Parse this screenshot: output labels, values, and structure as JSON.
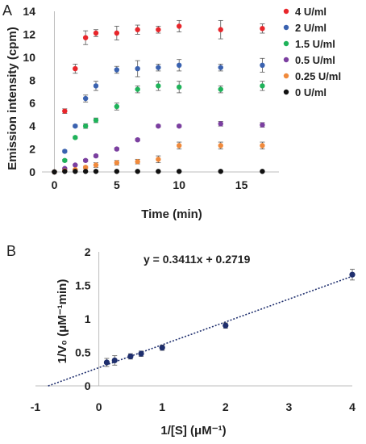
{
  "chart_data": [
    {
      "panel": "A",
      "type": "scatter",
      "xlabel": "Time (min)",
      "ylabel": "Emission intensity (cpm)",
      "xlim": [
        -1,
        18
      ],
      "ylim": [
        0,
        14
      ],
      "xticks": [
        "0",
        "5",
        "10",
        "15"
      ],
      "yticks": [
        "0",
        "2",
        "4",
        "6",
        "8",
        "10",
        "12",
        "14"
      ],
      "grid": false,
      "legend_position": "right",
      "error_bars": true,
      "series": [
        {
          "name": "4 U/ml",
          "color": "#e8262b",
          "x": [
            0,
            0.83,
            1.67,
            2.5,
            3.33,
            5,
            6.67,
            8.33,
            10,
            13.33,
            16.67
          ],
          "y": [
            0,
            5.3,
            9.0,
            11.7,
            12.1,
            12.1,
            12.4,
            12.4,
            12.7,
            12.4,
            12.5
          ],
          "err": [
            0,
            0.2,
            0.4,
            0.6,
            0.3,
            0.6,
            0.4,
            0.3,
            0.5,
            0.8,
            0.4
          ]
        },
        {
          "name": "2 U/ml",
          "color": "#3a62b0",
          "x": [
            0,
            0.83,
            1.67,
            2.5,
            3.33,
            5,
            6.67,
            8.33,
            10,
            13.33,
            16.67
          ],
          "y": [
            0,
            1.8,
            4.0,
            6.4,
            7.5,
            8.9,
            9.0,
            9.1,
            9.3,
            9.1,
            9.3
          ],
          "err": [
            0,
            0.1,
            0.1,
            0.3,
            0.4,
            0.3,
            0.7,
            0.3,
            0.5,
            0.3,
            0.6
          ]
        },
        {
          "name": "1.5 U/ml",
          "color": "#1fb35a",
          "x": [
            0,
            0.83,
            1.67,
            2.5,
            3.33,
            5,
            6.67,
            8.33,
            10,
            13.33,
            16.67
          ],
          "y": [
            0,
            1.0,
            3.0,
            4.0,
            4.5,
            5.7,
            7.2,
            7.5,
            7.4,
            7.2,
            7.5
          ],
          "err": [
            0,
            0.1,
            0.1,
            0.2,
            0.2,
            0.3,
            0.3,
            0.4,
            0.5,
            0.3,
            0.4
          ]
        },
        {
          "name": "0.5 U/ml",
          "color": "#7b3fa0",
          "x": [
            0,
            0.83,
            1.67,
            2.5,
            3.33,
            5,
            6.67,
            8.33,
            10,
            13.33,
            16.67
          ],
          "y": [
            0,
            0.3,
            0.6,
            1.0,
            1.4,
            2.0,
            2.8,
            4.0,
            4.0,
            4.2,
            4.1
          ],
          "err": [
            0,
            0.05,
            0.05,
            0.1,
            0.1,
            0.1,
            0.1,
            0.1,
            0.1,
            0.2,
            0.2
          ]
        },
        {
          "name": "0.25 U/ml",
          "color": "#f08a3c",
          "x": [
            0,
            0.83,
            1.67,
            2.5,
            3.33,
            5,
            6.67,
            8.33,
            10,
            13.33,
            16.67
          ],
          "y": [
            0,
            0.1,
            0.2,
            0.4,
            0.6,
            0.8,
            0.9,
            1.1,
            2.3,
            2.3,
            2.3
          ],
          "err": [
            0,
            0.05,
            0.05,
            0.1,
            0.2,
            0.2,
            0.2,
            0.3,
            0.3,
            0.3,
            0.3
          ]
        },
        {
          "name": "0 U/ml",
          "color": "#111111",
          "x": [
            0,
            0.83,
            1.67,
            2.5,
            3.33,
            5,
            6.67,
            8.33,
            10,
            13.33,
            16.67
          ],
          "y": [
            0,
            0.05,
            0.05,
            0.05,
            0.05,
            0.05,
            0.05,
            0.05,
            0.05,
            0.05,
            0.05
          ],
          "err": [
            0,
            0,
            0,
            0,
            0,
            0,
            0,
            0,
            0,
            0,
            0
          ]
        }
      ]
    },
    {
      "panel": "B",
      "type": "scatter",
      "xlabel": "1/[S] (μM⁻¹)",
      "ylabel": "1/V₀ (μM⁻¹min)",
      "xlim": [
        -1,
        4
      ],
      "ylim": [
        0,
        2
      ],
      "xticks": [
        "-1",
        "0",
        "1",
        "2",
        "3",
        "4"
      ],
      "yticks": [
        "0",
        "0.5",
        "1",
        "1.5",
        "2"
      ],
      "grid": false,
      "equation": "y = 0.3411x + 0.2719",
      "trendline": {
        "slope": 0.3411,
        "intercept": 0.2719,
        "x_from": -0.8,
        "x_to": 4
      },
      "series": [
        {
          "name": "",
          "color": "#1f2f6e",
          "x": [
            0.125,
            0.25,
            0.5,
            0.667,
            1,
            2,
            4
          ],
          "y": [
            0.35,
            0.38,
            0.44,
            0.48,
            0.57,
            0.9,
            1.66
          ],
          "err": [
            0.06,
            0.07,
            0.04,
            0.04,
            0.04,
            0.04,
            0.08
          ]
        }
      ]
    }
  ],
  "labels": {
    "panel_a": "A",
    "panel_b": "B"
  }
}
